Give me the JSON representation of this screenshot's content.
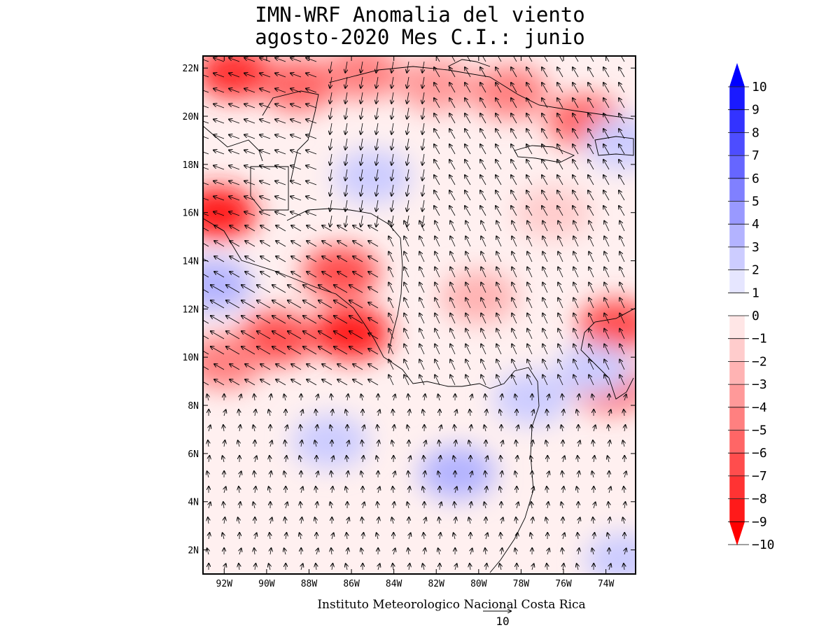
{
  "title": {
    "line1": "IMN-WRF Anomalia del viento",
    "line2": "agosto-2020 Mes C.I.: junio"
  },
  "map": {
    "lon_range": [
      -93,
      -72.6
    ],
    "lat_range": [
      1,
      22.5
    ],
    "lat_ticks": [
      {
        "value": 2,
        "label": "2N"
      },
      {
        "value": 4,
        "label": "4N"
      },
      {
        "value": 6,
        "label": "6N"
      },
      {
        "value": 8,
        "label": "8N"
      },
      {
        "value": 10,
        "label": "10N"
      },
      {
        "value": 12,
        "label": "12N"
      },
      {
        "value": 14,
        "label": "14N"
      },
      {
        "value": 16,
        "label": "16N"
      },
      {
        "value": 18,
        "label": "18N"
      },
      {
        "value": 20,
        "label": "20N"
      },
      {
        "value": 22,
        "label": "22N"
      }
    ],
    "lon_ticks": [
      {
        "value": -92,
        "label": "92W"
      },
      {
        "value": -90,
        "label": "90W"
      },
      {
        "value": -88,
        "label": "88W"
      },
      {
        "value": -86,
        "label": "86W"
      },
      {
        "value": -84,
        "label": "84W"
      },
      {
        "value": -82,
        "label": "82W"
      },
      {
        "value": -80,
        "label": "80W"
      },
      {
        "value": -78,
        "label": "78W"
      },
      {
        "value": -76,
        "label": "76W"
      },
      {
        "value": -74,
        "label": "74W"
      }
    ],
    "shading_regions": [
      {
        "lon": -91.5,
        "lat": 21.8,
        "level": -8
      },
      {
        "lon": -88.5,
        "lat": 21.3,
        "level": -6
      },
      {
        "lon": -85.5,
        "lat": 21.8,
        "level": -5
      },
      {
        "lon": -82.0,
        "lat": 21.3,
        "level": -4
      },
      {
        "lon": -78.5,
        "lat": 21.0,
        "level": -5
      },
      {
        "lon": -75.0,
        "lat": 19.8,
        "level": -6
      },
      {
        "lon": -92.3,
        "lat": 16.0,
        "level": -10
      },
      {
        "lon": -86.5,
        "lat": 13.5,
        "level": -7
      },
      {
        "lon": -86.0,
        "lat": 11.0,
        "level": -9
      },
      {
        "lon": -89.5,
        "lat": 10.8,
        "level": -7
      },
      {
        "lon": -92.0,
        "lat": 9.8,
        "level": -5
      },
      {
        "lon": -73.5,
        "lat": 11.3,
        "level": -7
      },
      {
        "lon": -73.8,
        "lat": 8.8,
        "level": -6
      },
      {
        "lon": -80.0,
        "lat": 12.5,
        "level": -3
      },
      {
        "lon": -76.5,
        "lat": 16.0,
        "level": -2
      },
      {
        "lon": -92.5,
        "lat": 13.0,
        "level": 3
      },
      {
        "lon": -85.0,
        "lat": 17.5,
        "level": 2
      },
      {
        "lon": -87.0,
        "lat": 6.5,
        "level": 2
      },
      {
        "lon": -81.0,
        "lat": 5.2,
        "level": 3
      },
      {
        "lon": -77.5,
        "lat": 8.3,
        "level": 2
      },
      {
        "lon": -74.5,
        "lat": 9.5,
        "level": 2
      },
      {
        "lon": -73.2,
        "lat": 18.9,
        "level": 2
      },
      {
        "lon": -73.2,
        "lat": 1.6,
        "level": 2
      }
    ]
  },
  "colorbar": {
    "labels": [
      "10",
      "9",
      "8",
      "7",
      "6",
      "5",
      "4",
      "3",
      "2",
      "1",
      "0",
      "−1",
      "−2",
      "−3",
      "−4",
      "−5",
      "−6",
      "−7",
      "−8",
      "−9",
      "−10"
    ],
    "colors": {
      "top_arrow": "#0000ff",
      "positive": [
        "#1a1aff",
        "#3333ff",
        "#4d4dff",
        "#6666ff",
        "#8080ff",
        "#9999ff",
        "#b3b3ff",
        "#ccccff",
        "#e6e6ff"
      ],
      "zero_band": "#ffffff",
      "negative": [
        "#ffe6e6",
        "#ffcccc",
        "#ffb3b3",
        "#ff9999",
        "#ff8080",
        "#ff6666",
        "#ff4d4d",
        "#ff3333",
        "#ff1a1a"
      ],
      "bottom_arrow": "#ff0000"
    }
  },
  "footer": {
    "institution": "Instituto Meteorologico Nacional Costa Rica",
    "reference_vector_label": "10"
  }
}
